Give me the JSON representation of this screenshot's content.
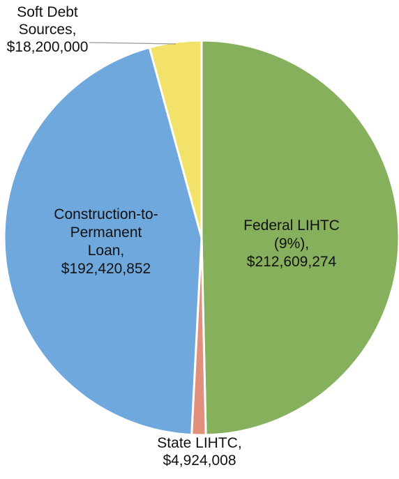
{
  "chart_data": {
    "type": "pie",
    "title": "",
    "legend": "none",
    "slices": [
      {
        "name": "Federal LIHTC (9%)",
        "value": 212609274,
        "label_lines": [
          "Federal LIHTC",
          "(9%),",
          "$212,609,274"
        ],
        "color": "#86b05c"
      },
      {
        "name": "State LIHTC",
        "value": 4924008,
        "label_lines": [
          "State LIHTC,",
          "$4,924,008"
        ],
        "color": "#e0907c"
      },
      {
        "name": "Construction-to-Permanent Loan",
        "value": 192420852,
        "label_lines": [
          "Construction-to-",
          "Permanent",
          "Loan,",
          "$192,420,852"
        ],
        "color": "#6fa8dc"
      },
      {
        "name": "Soft Debt Sources",
        "value": 18200000,
        "label_lines": [
          "Soft Debt",
          "Sources,",
          "$18,200,000"
        ],
        "color": "#f2e269"
      }
    ]
  }
}
